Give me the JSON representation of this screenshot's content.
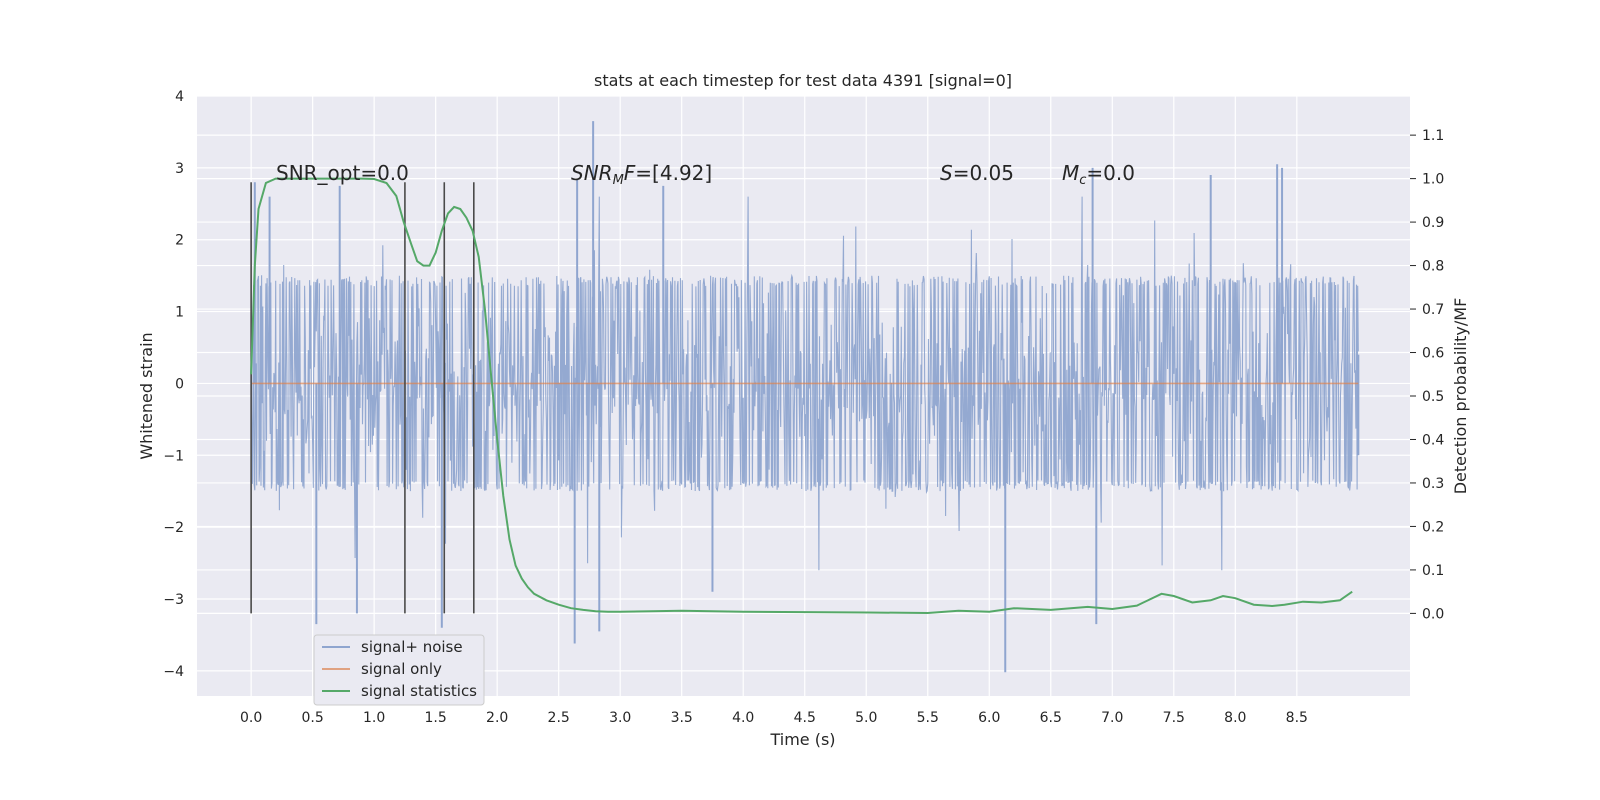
{
  "chart_data": {
    "type": "line",
    "title": "stats at each timestep for test data 4391 [signal=0]",
    "xlabel": "Time (s)",
    "ylabel": "Whitened strain",
    "y2label": "Detection probability/MF",
    "xlim": [
      -0.44,
      9.42
    ],
    "ylim": [
      -4.35,
      4.0
    ],
    "y2lim": [
      -0.19,
      1.19
    ],
    "xticks": [
      0.0,
      0.5,
      1.0,
      1.5,
      2.0,
      2.5,
      3.0,
      3.5,
      4.0,
      4.5,
      5.0,
      5.5,
      6.0,
      6.5,
      7.0,
      7.5,
      8.0,
      8.5
    ],
    "xtick_labels": [
      "0.0",
      "0.5",
      "1.0",
      "1.5",
      "2.0",
      "2.5",
      "3.0",
      "3.5",
      "4.0",
      "4.5",
      "5.0",
      "5.5",
      "6.0",
      "6.5",
      "7.0",
      "7.5",
      "8.0",
      "8.5"
    ],
    "yticks": [
      -4,
      -3,
      -2,
      -1,
      0,
      1,
      2,
      3,
      4
    ],
    "ytick_labels": [
      "−4",
      "−3",
      "−2",
      "−1",
      "0",
      "1",
      "2",
      "3",
      "4"
    ],
    "y2ticks": [
      0.0,
      0.1,
      0.2,
      0.3,
      0.4,
      0.5,
      0.6,
      0.7,
      0.8,
      0.9,
      1.0,
      1.1
    ],
    "y2tick_labels": [
      "0.0",
      "0.1",
      "0.2",
      "0.3",
      "0.4",
      "0.5",
      "0.6",
      "0.7",
      "0.8",
      "0.9",
      "1.0",
      "1.1"
    ],
    "grid": true,
    "legend_position": "lower-left",
    "series": [
      {
        "name": "signal+ noise",
        "axis": "left",
        "color": "#8fa5cf",
        "x_range": [
          0.0,
          9.0
        ],
        "envelope": {
          "typical": [
            -1.5,
            1.5
          ],
          "max": 3.65,
          "min": -4.02
        },
        "spikes": [
          {
            "x": 0.03,
            "y": 2.8
          },
          {
            "x": 0.15,
            "y": 2.6
          },
          {
            "x": 0.53,
            "y": -3.35
          },
          {
            "x": 0.72,
            "y": 2.75
          },
          {
            "x": 0.86,
            "y": -3.2
          },
          {
            "x": 1.55,
            "y": -3.4
          },
          {
            "x": 2.65,
            "y": 2.85
          },
          {
            "x": 2.63,
            "y": -3.62
          },
          {
            "x": 2.78,
            "y": 3.65
          },
          {
            "x": 2.83,
            "y": -3.45
          },
          {
            "x": 3.35,
            "y": 2.75
          },
          {
            "x": 3.75,
            "y": -2.9
          },
          {
            "x": 6.13,
            "y": -4.02
          },
          {
            "x": 6.87,
            "y": -3.35
          },
          {
            "x": 6.84,
            "y": 3.0
          },
          {
            "x": 7.8,
            "y": 2.9
          },
          {
            "x": 8.34,
            "y": 3.05
          },
          {
            "x": 8.38,
            "y": 3.0
          }
        ]
      },
      {
        "name": "signal only",
        "axis": "left",
        "color": "#dd8452",
        "x": [
          0.0,
          9.0
        ],
        "y": [
          0.0,
          0.0
        ]
      },
      {
        "name": "signal statistics",
        "axis": "right",
        "color": "#55a868",
        "x": [
          0.0,
          0.03,
          0.06,
          0.12,
          0.2,
          0.3,
          0.5,
          0.7,
          0.9,
          1.0,
          1.1,
          1.18,
          1.24,
          1.3,
          1.35,
          1.4,
          1.45,
          1.5,
          1.55,
          1.6,
          1.65,
          1.7,
          1.75,
          1.8,
          1.85,
          1.9,
          1.95,
          2.0,
          2.05,
          2.1,
          2.15,
          2.2,
          2.25,
          2.3,
          2.4,
          2.5,
          2.6,
          2.7,
          2.8,
          2.9,
          3.0,
          3.25,
          3.5,
          4.0,
          4.5,
          5.0,
          5.5,
          5.75,
          6.0,
          6.2,
          6.5,
          6.8,
          7.0,
          7.2,
          7.4,
          7.5,
          7.65,
          7.8,
          7.9,
          8.0,
          8.15,
          8.3,
          8.4,
          8.55,
          8.7,
          8.85,
          8.95
        ],
        "y": [
          0.55,
          0.8,
          0.93,
          0.99,
          1.0,
          1.0,
          1.0,
          1.0,
          1.0,
          0.999,
          0.99,
          0.96,
          0.9,
          0.85,
          0.81,
          0.8,
          0.8,
          0.83,
          0.88,
          0.92,
          0.935,
          0.93,
          0.91,
          0.88,
          0.82,
          0.7,
          0.55,
          0.4,
          0.27,
          0.17,
          0.11,
          0.08,
          0.06,
          0.045,
          0.03,
          0.02,
          0.012,
          0.008,
          0.005,
          0.004,
          0.004,
          0.005,
          0.006,
          0.004,
          0.003,
          0.002,
          0.001,
          0.006,
          0.004,
          0.012,
          0.008,
          0.015,
          0.01,
          0.018,
          0.045,
          0.04,
          0.025,
          0.03,
          0.04,
          0.035,
          0.02,
          0.017,
          0.02,
          0.027,
          0.025,
          0.03,
          0.05
        ]
      }
    ],
    "vertical_lines": [
      {
        "x": 0.0,
        "ylim": [
          -3.2,
          2.8
        ]
      },
      {
        "x": 1.25,
        "ylim": [
          -3.2,
          2.8
        ]
      },
      {
        "x": 1.57,
        "ylim": [
          -3.2,
          2.8
        ]
      },
      {
        "x": 1.81,
        "ylim": [
          -3.2,
          2.8
        ]
      }
    ],
    "annotations": [
      {
        "text": "SNR_opt=0.0",
        "x": 0.2,
        "y": 2.85
      },
      {
        "text": "SNRMF=[4.92]",
        "x": 2.6,
        "y": 2.85
      },
      {
        "text": "S=0.05",
        "x": 5.6,
        "y": 2.85
      },
      {
        "text": "Mc=0.0",
        "x": 6.6,
        "y": 2.85
      }
    ]
  }
}
